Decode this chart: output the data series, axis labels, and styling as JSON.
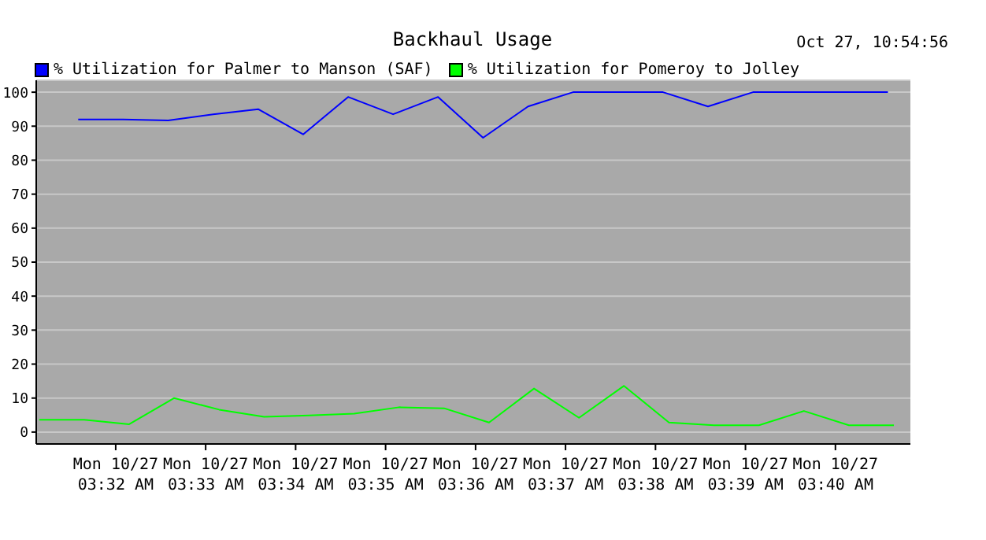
{
  "chart_data": {
    "type": "line",
    "title": "Backhaul Usage",
    "annotations": [
      "Oct 27, 10:54:56"
    ],
    "series": [
      {
        "name": "% Utilization for Palmer to Manson (SAF)",
        "color": "#0000ff",
        "x": [
          "--10-27T03:31:35",
          "--10-27T03:32:05",
          "--10-27T03:32:35",
          "--10-27T03:33:05",
          "--10-27T03:33:35",
          "--10-27T03:34:05",
          "--10-27T03:34:35",
          "--10-27T03:35:05",
          "--10-27T03:35:35",
          "--10-27T03:36:05",
          "--10-27T03:36:35",
          "--10-27T03:37:05",
          "--10-27T03:37:35",
          "--10-27T03:38:05",
          "--10-27T03:38:35",
          "--10-27T03:39:05",
          "--10-27T03:39:35",
          "--10-27T03:40:05",
          "--10-27T03:40:35"
        ],
        "values": [
          92,
          92,
          91.7,
          93.5,
          95,
          87.6,
          98.6,
          93.5,
          98.6,
          86.6,
          95.8,
          100,
          100,
          100,
          95.8,
          100,
          100,
          100,
          100
        ]
      },
      {
        "name": "% Utilization for Pomeroy to Jolley",
        "color": "#00ff00",
        "x": [
          "--10-27T03:31:09",
          "--10-27T03:31:39",
          "--10-27T03:32:09",
          "--10-27T03:32:39",
          "--10-27T03:33:09",
          "--10-27T03:33:39",
          "--10-27T03:34:09",
          "--10-27T03:34:39",
          "--10-27T03:35:09",
          "--10-27T03:35:39",
          "--10-27T03:36:09",
          "--10-27T03:36:39",
          "--10-27T03:37:09",
          "--10-27T03:37:39",
          "--10-27T03:38:09",
          "--10-27T03:38:39",
          "--10-27T03:39:09",
          "--10-27T03:39:39",
          "--10-27T03:40:09",
          "--10-27T03:40:39"
        ],
        "values": [
          3.6,
          3.6,
          2.3,
          10,
          6.6,
          4.5,
          4.9,
          5.4,
          7.3,
          7,
          2.8,
          12.8,
          4.2,
          13.6,
          2.8,
          2,
          2,
          6.2,
          2,
          2
        ]
      }
    ],
    "xlim": [
      "--10-27T03:31:07",
      "--10-27T03:40:50"
    ],
    "xticks": [
      {
        "value": "--10-27T03:32",
        "label": "Mon 10/27\n03:32 AM"
      },
      {
        "value": "--10-27T03:33",
        "label": "Mon 10/27\n03:33 AM"
      },
      {
        "value": "--10-27T03:34",
        "label": "Mon 10/27\n03:34 AM"
      },
      {
        "value": "--10-27T03:35",
        "label": "Mon 10/27\n03:35 AM"
      },
      {
        "value": "--10-27T03:36",
        "label": "Mon 10/27\n03:36 AM"
      },
      {
        "value": "--10-27T03:37",
        "label": "Mon 10/27\n03:37 AM"
      },
      {
        "value": "--10-27T03:38",
        "label": "Mon 10/27\n03:38 AM"
      },
      {
        "value": "--10-27T03:39",
        "label": "Mon 10/27\n03:39 AM"
      },
      {
        "value": "--10-27T03:40",
        "label": "Mon 10/27\n03:40 AM"
      }
    ],
    "ylim": [
      -3.5,
      103.5
    ],
    "yticks": [
      0,
      10,
      20,
      30,
      40,
      50,
      60,
      70,
      80,
      90,
      100
    ],
    "grid": "y",
    "legend": "top left",
    "marker": "none",
    "line_style": "solid"
  }
}
